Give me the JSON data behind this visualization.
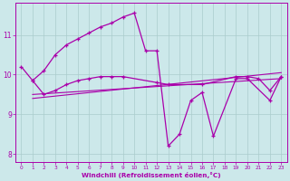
{
  "xlabel": "Windchill (Refroidissement éolien,°C)",
  "background_color": "#cce8ea",
  "grid_color": "#aacccc",
  "line_color": "#aa00aa",
  "s1_x": [
    0,
    1,
    2,
    3,
    4,
    5,
    6,
    7,
    8,
    9,
    10,
    11,
    12,
    13,
    14,
    15,
    16,
    17,
    19,
    20,
    22,
    23
  ],
  "s1_y": [
    10.2,
    9.85,
    10.1,
    10.5,
    10.75,
    10.9,
    11.05,
    11.2,
    11.3,
    11.45,
    11.55,
    10.6,
    10.6,
    8.2,
    8.5,
    9.35,
    9.55,
    8.45,
    9.9,
    9.9,
    9.35,
    9.95
  ],
  "s2_x": [
    1,
    2,
    3,
    4,
    5,
    6,
    7,
    8,
    9,
    12,
    13,
    16,
    19,
    20,
    21,
    22,
    23
  ],
  "s2_y": [
    9.85,
    9.5,
    9.6,
    9.75,
    9.85,
    9.9,
    9.95,
    9.95,
    9.95,
    9.8,
    9.75,
    9.75,
    9.95,
    9.95,
    9.9,
    9.6,
    9.95
  ],
  "trend1_x": [
    1,
    23
  ],
  "trend1_y": [
    9.5,
    9.9
  ],
  "trend2_x": [
    1,
    23
  ],
  "trend2_y": [
    9.4,
    10.05
  ],
  "ylim": [
    7.8,
    11.8
  ],
  "yticks": [
    8,
    9,
    10,
    11
  ],
  "xticks": [
    0,
    1,
    2,
    3,
    4,
    5,
    6,
    7,
    8,
    9,
    10,
    11,
    12,
    13,
    14,
    15,
    16,
    17,
    18,
    19,
    20,
    21,
    22,
    23
  ]
}
